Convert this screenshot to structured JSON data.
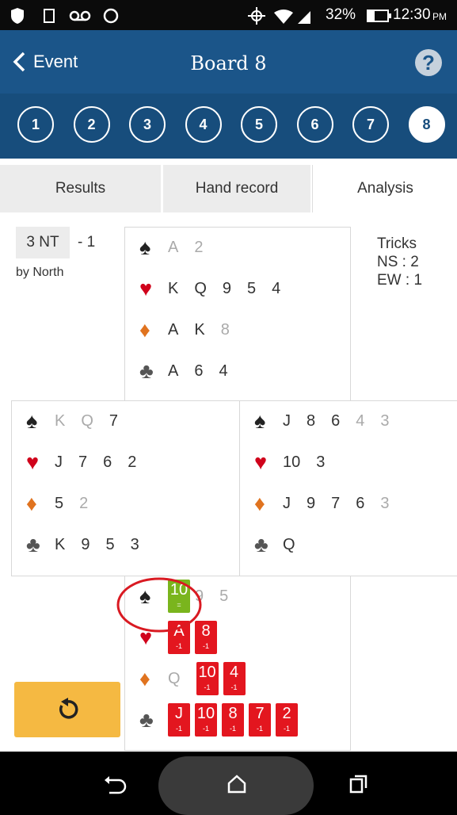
{
  "status_bar": {
    "battery": "32%",
    "time": "12:30",
    "meridiem": "PM"
  },
  "header": {
    "back": "Event",
    "title": "Board 8",
    "help": "?"
  },
  "boards": [
    {
      "label": "1"
    },
    {
      "label": "2"
    },
    {
      "label": "3"
    },
    {
      "label": "4"
    },
    {
      "label": "5"
    },
    {
      "label": "6"
    },
    {
      "label": "7"
    },
    {
      "label": "8",
      "selected": true
    }
  ],
  "tabs": [
    {
      "label": "Results"
    },
    {
      "label": "Hand record"
    },
    {
      "label": "Analysis",
      "active": true
    }
  ],
  "contract": {
    "level": "3 NT",
    "result": "- 1",
    "declarer": "by North"
  },
  "tricks": {
    "title": "Tricks",
    "ns": "NS : 2",
    "ew": "EW : 1"
  },
  "suit_symbols": [
    "♠",
    "♥",
    "♦",
    "♣"
  ],
  "suit_colors": [
    "#222222",
    "#d0021b",
    "#e0731f",
    "#555555"
  ],
  "hands": {
    "north": [
      [
        {
          "rank": "A",
          "played": true
        },
        {
          "rank": "2",
          "played": true
        }
      ],
      [
        {
          "rank": "K"
        },
        {
          "rank": "Q"
        },
        {
          "rank": "9"
        },
        {
          "rank": "5"
        },
        {
          "rank": "4"
        }
      ],
      [
        {
          "rank": "A"
        },
        {
          "rank": "K"
        },
        {
          "rank": "8",
          "played": true
        }
      ],
      [
        {
          "rank": "A"
        },
        {
          "rank": "6"
        },
        {
          "rank": "4"
        }
      ]
    ],
    "west": [
      [
        {
          "rank": "K",
          "played": true
        },
        {
          "rank": "Q",
          "played": true
        },
        {
          "rank": "7"
        }
      ],
      [
        {
          "rank": "J"
        },
        {
          "rank": "7"
        },
        {
          "rank": "6"
        },
        {
          "rank": "2"
        }
      ],
      [
        {
          "rank": "5"
        },
        {
          "rank": "2",
          "played": true
        }
      ],
      [
        {
          "rank": "K"
        },
        {
          "rank": "9"
        },
        {
          "rank": "5"
        },
        {
          "rank": "3"
        }
      ]
    ],
    "east": [
      [
        {
          "rank": "J"
        },
        {
          "rank": "8"
        },
        {
          "rank": "6"
        },
        {
          "rank": "4",
          "played": true
        },
        {
          "rank": "3",
          "played": true
        }
      ],
      [
        {
          "rank": "10"
        },
        {
          "rank": "3"
        }
      ],
      [
        {
          "rank": "J"
        },
        {
          "rank": "9"
        },
        {
          "rank": "7"
        },
        {
          "rank": "6"
        },
        {
          "rank": "3",
          "played": true
        }
      ],
      [
        {
          "rank": "Q"
        }
      ]
    ],
    "south": [
      [
        {
          "rank": "10",
          "score": "=",
          "color": "#7ab51d"
        },
        {
          "rank": "9",
          "played": true
        },
        {
          "rank": "5",
          "played": true
        }
      ],
      [
        {
          "rank": "A",
          "score": "-1",
          "color": "#e3161f"
        },
        {
          "rank": "8",
          "score": "-1",
          "color": "#e3161f"
        }
      ],
      [
        {
          "rank": "Q",
          "played": true
        },
        {
          "rank": "10",
          "score": "-1",
          "color": "#e3161f"
        },
        {
          "rank": "4",
          "score": "-1",
          "color": "#e3161f"
        }
      ],
      [
        {
          "rank": "J",
          "score": "-1",
          "color": "#e3161f"
        },
        {
          "rank": "10",
          "score": "-1",
          "color": "#e3161f"
        },
        {
          "rank": "8",
          "score": "-1",
          "color": "#e3161f"
        },
        {
          "rank": "7",
          "score": "-1",
          "color": "#e3161f"
        },
        {
          "rank": "2",
          "score": "-1",
          "color": "#e3161f"
        }
      ]
    ]
  }
}
